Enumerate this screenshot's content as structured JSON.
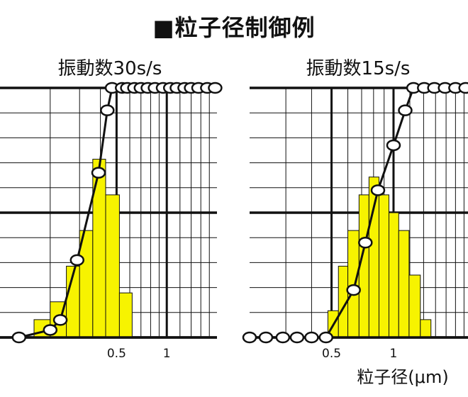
{
  "title": "■粒子径制御例",
  "chart_data": [
    {
      "type": "bar+line",
      "title": "振動数30s/s",
      "x_scale": "log",
      "xticks": [
        {
          "value": 0.5,
          "label": "0.5"
        },
        {
          "value": 1,
          "label": "1"
        }
      ],
      "xlabel": "",
      "histogram": [
        {
          "x0": 0.16,
          "x1": 0.2,
          "value": 1
        },
        {
          "x0": 0.2,
          "x1": 0.25,
          "value": 2
        },
        {
          "x0": 0.25,
          "x1": 0.3,
          "value": 4
        },
        {
          "x0": 0.3,
          "x1": 0.36,
          "value": 6
        },
        {
          "x0": 0.36,
          "x1": 0.43,
          "value": 10
        },
        {
          "x0": 0.43,
          "x1": 0.52,
          "value": 8
        },
        {
          "x0": 0.52,
          "x1": 0.62,
          "value": 2.5
        }
      ],
      "cumulative": {
        "x": [
          0.13,
          0.2,
          0.23,
          0.29,
          0.39,
          0.44,
          0.47,
          0.54,
          0.58,
          0.64,
          0.7,
          0.77,
          0.85,
          0.95,
          1.05,
          1.15,
          1.28,
          1.4,
          1.55,
          1.75,
          1.95
        ],
        "y": [
          0,
          3,
          7,
          31,
          66,
          91,
          100,
          100,
          100,
          100,
          100,
          100,
          100,
          100,
          100,
          100,
          100,
          100,
          100,
          100,
          100
        ]
      },
      "grid": true
    },
    {
      "type": "bar+line",
      "title": "振動数15s/s",
      "x_scale": "log",
      "xticks": [
        {
          "value": 0.5,
          "label": "0.5"
        },
        {
          "value": 1,
          "label": "1"
        }
      ],
      "xlabel": "",
      "histogram": [
        {
          "x0": 0.48,
          "x1": 0.54,
          "value": 1.5
        },
        {
          "x0": 0.54,
          "x1": 0.6,
          "value": 4
        },
        {
          "x0": 0.6,
          "x1": 0.68,
          "value": 6
        },
        {
          "x0": 0.68,
          "x1": 0.76,
          "value": 8
        },
        {
          "x0": 0.76,
          "x1": 0.85,
          "value": 9
        },
        {
          "x0": 0.85,
          "x1": 0.95,
          "value": 8
        },
        {
          "x0": 0.95,
          "x1": 1.06,
          "value": 7
        },
        {
          "x0": 1.06,
          "x1": 1.19,
          "value": 6
        },
        {
          "x0": 1.19,
          "x1": 1.35,
          "value": 3.5
        },
        {
          "x0": 1.35,
          "x1": 1.52,
          "value": 1
        }
      ],
      "cumulative": {
        "x": [
          0.2,
          0.24,
          0.29,
          0.34,
          0.4,
          0.47,
          0.64,
          0.73,
          0.84,
          1.0,
          1.14,
          1.25,
          1.41,
          1.58,
          1.78,
          2.0,
          2.24
        ],
        "y": [
          0,
          0,
          0,
          0,
          0,
          0,
          19,
          38,
          59,
          77,
          91,
          100,
          100,
          100,
          100,
          100,
          100
        ]
      },
      "grid": true
    }
  ],
  "shared_xlabel": "粒子径(μm)",
  "colors": {
    "bar": "#f7f300",
    "line": "#111111",
    "marker_fill": "#ffffff",
    "grid": "#111111"
  }
}
